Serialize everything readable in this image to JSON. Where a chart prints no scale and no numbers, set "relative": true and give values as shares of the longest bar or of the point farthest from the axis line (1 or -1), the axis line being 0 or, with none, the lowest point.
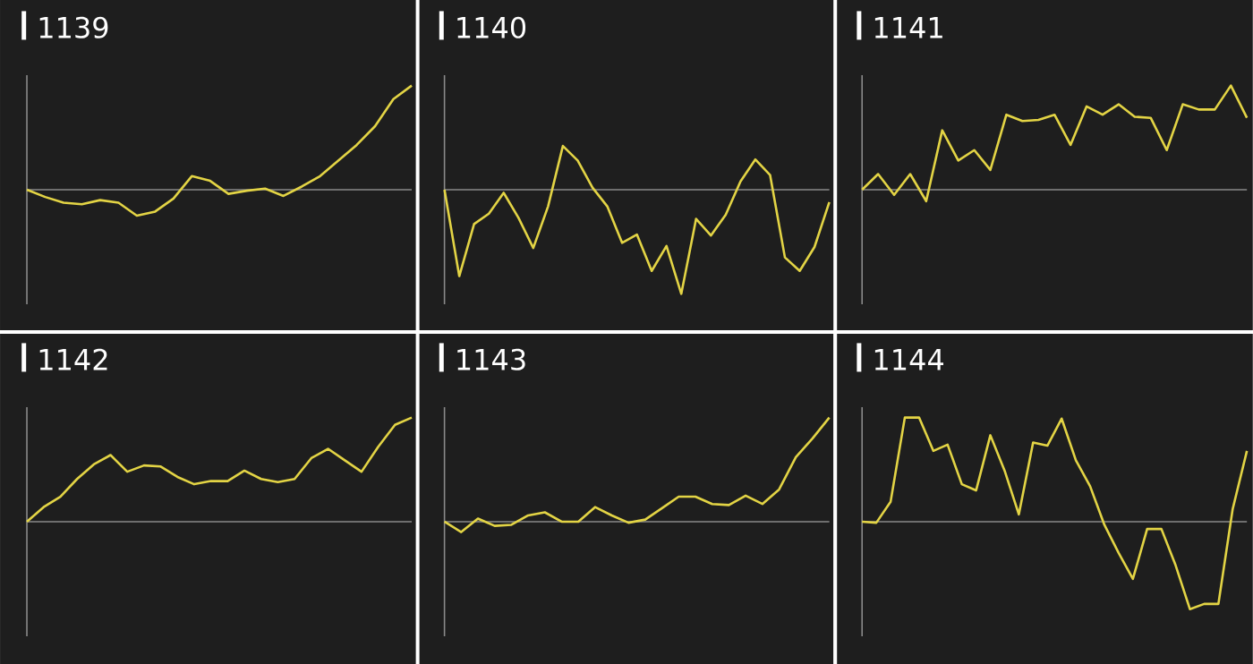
{
  "chart_data": [
    {
      "type": "line",
      "title": "1139",
      "relative": true,
      "color": "#e3d445",
      "categories": [
        null,
        null,
        null,
        null,
        null,
        null,
        null,
        null,
        null,
        null,
        null,
        null,
        null,
        null,
        null,
        null,
        null,
        null,
        null,
        null,
        null,
        null
      ],
      "values": [
        0,
        -0.07,
        -0.125,
        -0.14,
        -0.1,
        -0.125,
        -0.25,
        -0.21,
        -0.085,
        0.13,
        0.085,
        -0.04,
        -0.01,
        0.01,
        -0.06,
        0.03,
        0.13,
        0.28,
        0.43,
        0.61,
        0.87,
        1
      ]
    },
    {
      "type": "line",
      "title": "1140",
      "relative": true,
      "color": "#e3d445",
      "categories": [
        null,
        null,
        null,
        null,
        null,
        null,
        null,
        null,
        null,
        null,
        null,
        null,
        null,
        null,
        null,
        null,
        null,
        null,
        null,
        null,
        null,
        null,
        null,
        null,
        null,
        null,
        null
      ],
      "values": [
        0,
        -0.83,
        -0.33,
        -0.23,
        -0.03,
        -0.27,
        -0.56,
        -0.16,
        0.42,
        0.28,
        0.02,
        -0.16,
        -0.51,
        -0.43,
        -0.78,
        -0.54,
        -1,
        -0.28,
        -0.44,
        -0.24,
        0.08,
        0.29,
        0.14,
        -0.65,
        -0.78,
        -0.55,
        -0.12
      ]
    },
    {
      "type": "line",
      "title": "1141",
      "relative": true,
      "color": "#e3d445",
      "categories": [
        null,
        null,
        null,
        null,
        null,
        null,
        null,
        null,
        null,
        null,
        null,
        null,
        null,
        null,
        null,
        null,
        null,
        null,
        null,
        null,
        null,
        null,
        null,
        null,
        null
      ],
      "values": [
        0,
        0.15,
        -0.05,
        0.15,
        -0.11,
        0.57,
        0.28,
        0.38,
        0.19,
        0.72,
        0.66,
        0.67,
        0.72,
        0.43,
        0.8,
        0.72,
        0.82,
        0.7,
        0.69,
        0.38,
        0.82,
        0.77,
        0.77,
        1,
        0.69
      ]
    },
    {
      "type": "line",
      "title": "1142",
      "relative": true,
      "color": "#e3d445",
      "categories": [
        null,
        null,
        null,
        null,
        null,
        null,
        null,
        null,
        null,
        null,
        null,
        null,
        null,
        null,
        null,
        null,
        null,
        null,
        null,
        null,
        null,
        null,
        null,
        null
      ],
      "values": [
        0,
        0.14,
        0.24,
        0.41,
        0.55,
        0.64,
        0.48,
        0.54,
        0.53,
        0.43,
        0.36,
        0.39,
        0.39,
        0.49,
        0.41,
        0.38,
        0.41,
        0.61,
        0.7,
        0.59,
        0.48,
        0.72,
        0.93,
        1
      ]
    },
    {
      "type": "line",
      "title": "1143",
      "relative": true,
      "color": "#e3d445",
      "categories": [
        null,
        null,
        null,
        null,
        null,
        null,
        null,
        null,
        null,
        null,
        null,
        null,
        null,
        null,
        null,
        null,
        null,
        null,
        null,
        null,
        null,
        null,
        null,
        null
      ],
      "values": [
        0,
        -0.1,
        0.03,
        -0.04,
        -0.03,
        0.06,
        0.09,
        0,
        0,
        0.14,
        0.06,
        -0.01,
        0.02,
        0.13,
        0.24,
        0.24,
        0.17,
        0.16,
        0.25,
        0.17,
        0.31,
        0.62,
        0.8,
        1
      ]
    },
    {
      "type": "line",
      "title": "1144",
      "relative": true,
      "color": "#e3d445",
      "categories": [
        null,
        null,
        null,
        null,
        null,
        null,
        null,
        null,
        null,
        null,
        null,
        null,
        null,
        null,
        null,
        null,
        null,
        null,
        null,
        null,
        null,
        null,
        null,
        null,
        null,
        null,
        null,
        null
      ],
      "values": [
        0,
        -0.01,
        0.19,
        1,
        1,
        0.68,
        0.74,
        0.36,
        0.3,
        0.83,
        0.49,
        0.07,
        0.76,
        0.73,
        0.99,
        0.59,
        0.34,
        -0.03,
        -0.3,
        -0.55,
        -0.07,
        -0.07,
        -0.42,
        -0.84,
        -0.79,
        -0.79,
        0.12,
        0.68
      ]
    }
  ]
}
